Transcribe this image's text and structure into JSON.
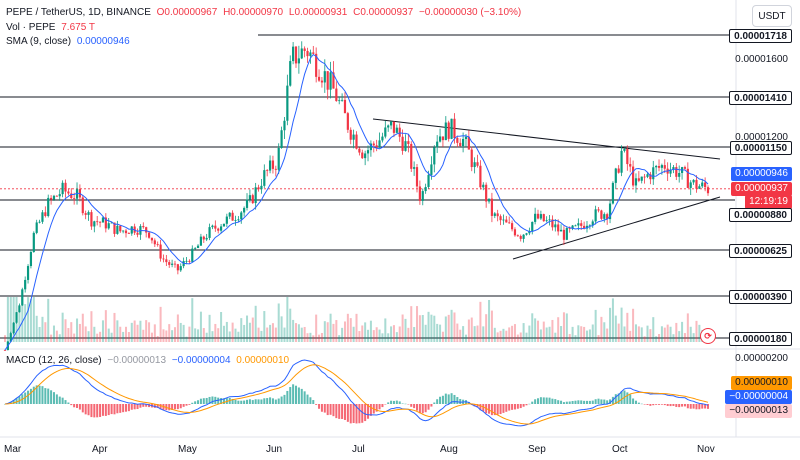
{
  "header": {
    "symbol": "PEPE / TetherUS, 1D, BINANCE",
    "open": "O0.00000967",
    "high": "H0.00000970",
    "low": "L0.00000931",
    "close": "C0.00000937",
    "change": "−0.00000030 (−3.10%)",
    "vol_label": "Vol · PEPE",
    "vol_value": "7.675 T",
    "sma_label": "SMA (9, close)",
    "sma_value": "0.00000946",
    "macd_label": "MACD (12, 26, close)",
    "macd_hist": "−0.00000013",
    "macd_line": "−0.00000004",
    "macd_signal": "0.00000010",
    "currency": "USDT"
  },
  "price_axis": {
    "labels": [
      {
        "text": "0.00001718",
        "style": "boxed"
      },
      {
        "text": "0.00001600",
        "style": "plain"
      },
      {
        "text": "0.00001410",
        "style": "boxed"
      },
      {
        "text": "0.00001200",
        "style": "plain"
      },
      {
        "text": "0.00001150",
        "style": "boxed"
      },
      {
        "text": "0.00000880",
        "style": "boxed"
      },
      {
        "text": "0.00000625",
        "style": "boxed"
      },
      {
        "text": "0.00000390",
        "style": "boxed"
      },
      {
        "text": "0.00000180",
        "style": "boxed"
      },
      {
        "text": "0.00000200",
        "style": "plain"
      }
    ],
    "sma_badge": "0.00000946",
    "last_price_badge": "0.00000937",
    "countdown": "12:19:19",
    "macd_badges": [
      "0.00000010",
      "−0.00000004",
      "−0.00000013"
    ]
  },
  "time_axis": {
    "months": [
      "Mar",
      "Apr",
      "May",
      "Jun",
      "Jul",
      "Aug",
      "Sep",
      "Oct",
      "Nov"
    ]
  },
  "colors": {
    "up": "#089981",
    "down": "#f23645",
    "sma": "#2962ff",
    "macd": "#2962ff",
    "signal": "#ff9800",
    "level_line": "#131722"
  },
  "chart_data": {
    "type": "candlestick",
    "horizontal_levels": [
      1.718e-05,
      1.41e-05,
      1.15e-05,
      8.8e-06,
      6.25e-06,
      3.9e-06,
      1.8e-06
    ],
    "close_series": [
      1.2e-06,
      3.5e-06,
      7e-06,
      8.6e-06,
      9.3e-06,
      9e-06,
      7.8e-06,
      7.6e-06,
      7.2e-06,
      7.4e-06,
      7.2e-06,
      5.8e-06,
      5.2e-06,
      6e-06,
      7e-06,
      7.6e-06,
      8e-06,
      8.6e-06,
      1e-05,
      1.08e-05,
      1.6e-05,
      1.65e-05,
      1.55e-05,
      1.43e-05,
      1.25e-05,
      1.12e-05,
      1.18e-05,
      1.26e-05,
      1.15e-05,
      8.8e-06,
      1.2e-05,
      1.25e-05,
      1.18e-05,
      1e-05,
      8e-06,
      7.5e-06,
      7e-06,
      7.9e-06,
      7.6e-06,
      7e-06,
      7.4e-06,
      8e-06,
      8.2e-06,
      1.13e-05,
      9.5e-06,
      1.02e-05,
      1.06e-05,
      1.02e-05,
      9.6e-06,
      9.37e-06
    ],
    "last_close": 9.37e-06
  }
}
